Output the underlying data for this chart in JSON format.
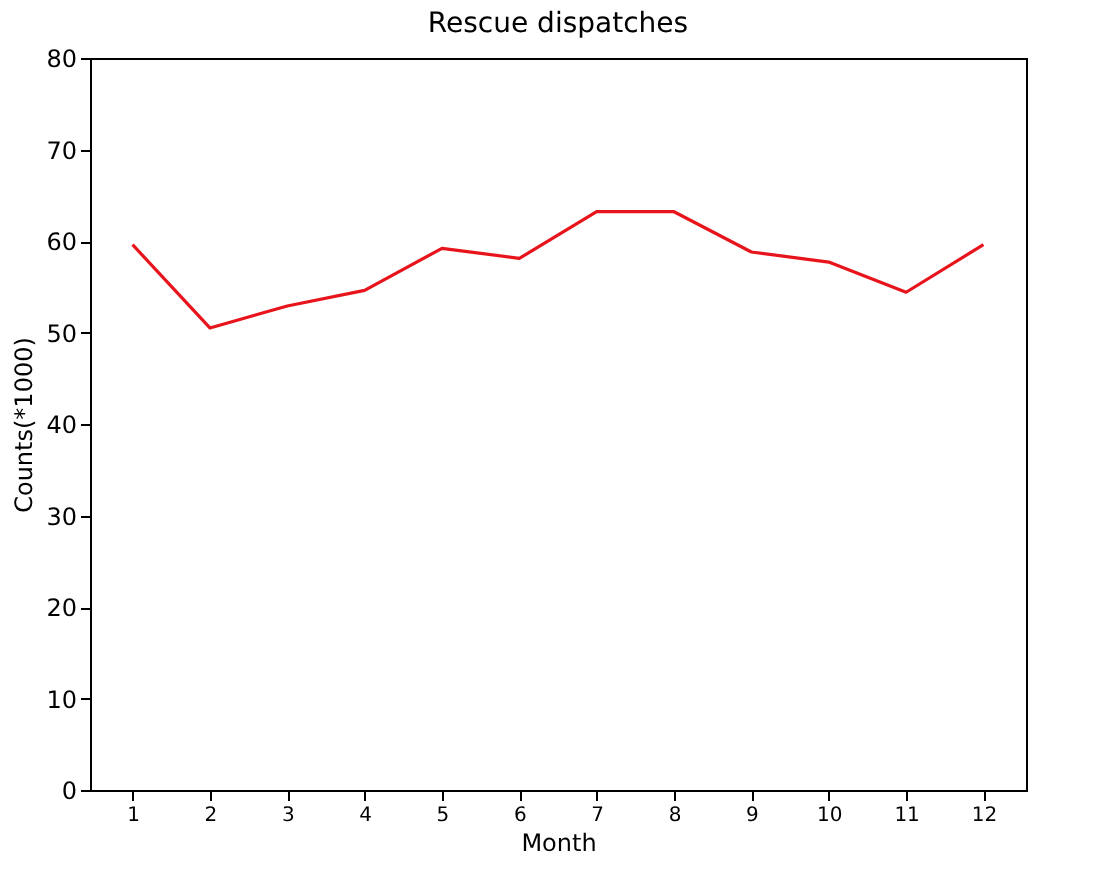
{
  "chart_data": {
    "type": "line",
    "title": "Rescue dispatches",
    "xlabel": "Month",
    "ylabel": "Counts(*1000)",
    "x": [
      1,
      2,
      3,
      4,
      5,
      6,
      7,
      8,
      9,
      10,
      11,
      12
    ],
    "series": [
      {
        "color": "#e8141c",
        "values": [
          59.6,
          50.5,
          52.9,
          54.6,
          59.2,
          58.1,
          63.2,
          63.2,
          58.8,
          57.7,
          54.4,
          59.6
        ]
      }
    ],
    "xlim": [
      0.45,
      12.55
    ],
    "xticks": [
      1,
      2,
      3,
      4,
      5,
      6,
      7,
      8,
      9,
      10,
      11,
      12
    ],
    "ylim": [
      0,
      80
    ],
    "yticks": [
      0,
      10,
      20,
      30,
      40,
      50,
      60,
      70,
      80
    ],
    "grid": false,
    "legend": false,
    "marker": "none",
    "line_style": "solid"
  }
}
